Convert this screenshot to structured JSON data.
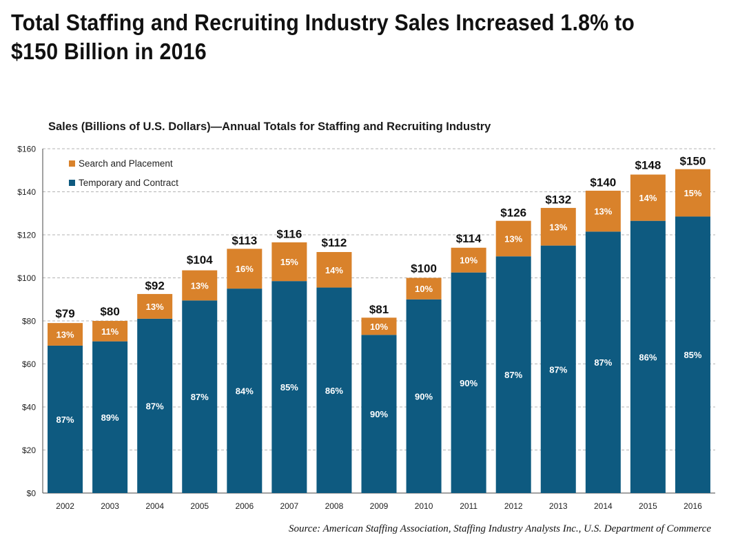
{
  "headline": "Total Staffing and Recruiting Industry Sales Increased 1.8% to $150 Billion in 2016",
  "source": "Source: American Staffing Association, Staffing Industry Analysts Inc., U.S. Department of Commerce",
  "colors": {
    "search": "#d9822b",
    "temporary": "#0e5a80",
    "grid": "#9a9a9a"
  },
  "chart_data": {
    "type": "bar",
    "stacked": true,
    "title": "Sales (Billions of U.S. Dollars)—Annual Totals for Staffing and Recruiting Industry",
    "xlabel": "",
    "ylabel": "",
    "ylim": [
      0,
      160
    ],
    "yticks": [
      0,
      20,
      40,
      60,
      80,
      100,
      120,
      140,
      160
    ],
    "ytick_labels": [
      "$0",
      "$20",
      "$40",
      "$60",
      "$80",
      "$100",
      "$120",
      "$140",
      "$160"
    ],
    "legend_position": "top-left",
    "categories": [
      "2002",
      "2003",
      "2004",
      "2005",
      "2006",
      "2007",
      "2008",
      "2009",
      "2010",
      "2011",
      "2012",
      "2013",
      "2014",
      "2015",
      "2016"
    ],
    "totals": [
      79,
      80,
      92,
      104,
      113,
      116,
      112,
      81,
      100,
      114,
      126,
      132,
      140,
      148,
      150
    ],
    "total_labels": [
      "$79",
      "$80",
      "$92",
      "$104",
      "$113",
      "$116",
      "$112",
      "$81",
      "$100",
      "$114",
      "$126",
      "$132",
      "$140",
      "$148",
      "$150"
    ],
    "series": [
      {
        "name": "Temporary and Contract",
        "color_key": "temporary",
        "values": [
          68.5,
          70.5,
          81,
          89.5,
          95,
          98.5,
          95.5,
          73.5,
          90,
          102.5,
          110,
          115,
          121.5,
          126.5,
          128.5
        ],
        "labels": [
          "87%",
          "89%",
          "87%",
          "87%",
          "84%",
          "85%",
          "86%",
          "90%",
          "90%",
          "90%",
          "87%",
          "87%",
          "87%",
          "86%",
          "85%"
        ]
      },
      {
        "name": "Search and Placement",
        "color_key": "search",
        "values": [
          10.5,
          9.5,
          11.5,
          14,
          18.5,
          18,
          16.5,
          8,
          10,
          11.5,
          16.5,
          17.5,
          19,
          21.5,
          22
        ],
        "labels": [
          "13%",
          "11%",
          "13%",
          "13%",
          "16%",
          "15%",
          "14%",
          "10%",
          "10%",
          "10%",
          "13%",
          "13%",
          "13%",
          "14%",
          "15%"
        ]
      }
    ],
    "legend": [
      "Search and Placement",
      "Temporary and Contract"
    ]
  }
}
